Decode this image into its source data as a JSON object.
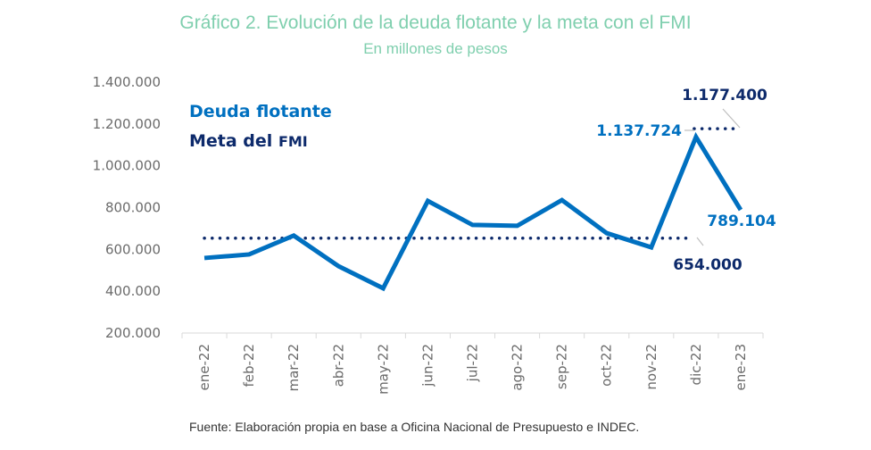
{
  "chart_data": {
    "type": "line",
    "title": "Gráfico 2. Evolución de la deuda flotante y la meta con el FMI",
    "subtitle": "En millones de pesos",
    "xlabel": "",
    "ylabel": "",
    "ylim": [
      200000,
      1400000
    ],
    "yticks": [
      200000,
      400000,
      600000,
      800000,
      1000000,
      1200000,
      1400000
    ],
    "ytick_labels": [
      "200.000",
      "400.000",
      "600.000",
      "800.000",
      "1.000.000",
      "1.200.000",
      "1.400.000"
    ],
    "categories": [
      "ene-22",
      "feb-22",
      "mar-22",
      "abr-22",
      "may-22",
      "jun-22",
      "jul-22",
      "ago-22",
      "sep-22",
      "oct-22",
      "nov-22",
      "dic-22",
      "ene-23"
    ],
    "grid": false,
    "legend_position": "top-left",
    "series": [
      {
        "name": "Deuda flotante",
        "color": "#0070c0",
        "style": "solid",
        "values": [
          559000,
          576000,
          666000,
          520000,
          414000,
          832000,
          717000,
          713000,
          836000,
          678000,
          610000,
          1137724,
          789104
        ]
      },
      {
        "name": "Meta del FMI",
        "color": "#0d2a6b",
        "style": "dotted",
        "segments": [
          {
            "from": "ene-22",
            "to": "nov-22",
            "value": 654000
          },
          {
            "from": "dic-22",
            "to": "ene-23",
            "value": 1177400
          }
        ]
      }
    ],
    "annotations": [
      {
        "text": "1.177.400",
        "series": "Meta del FMI",
        "color": "#0d2a6b"
      },
      {
        "text": "1.137.724",
        "series": "Deuda flotante",
        "color": "#0070c0"
      },
      {
        "text": "789.104",
        "series": "Deuda flotante",
        "color": "#0070c0"
      },
      {
        "text": "654.000",
        "series": "Meta del FMI",
        "color": "#0d2a6b"
      }
    ]
  },
  "legend": {
    "deuda": "Deuda flotante",
    "meta": "Meta del ",
    "meta_small": "FMI"
  },
  "source": "Fuente: Elaboración propia en base a Oficina Nacional de Presupuesto e INDEC."
}
